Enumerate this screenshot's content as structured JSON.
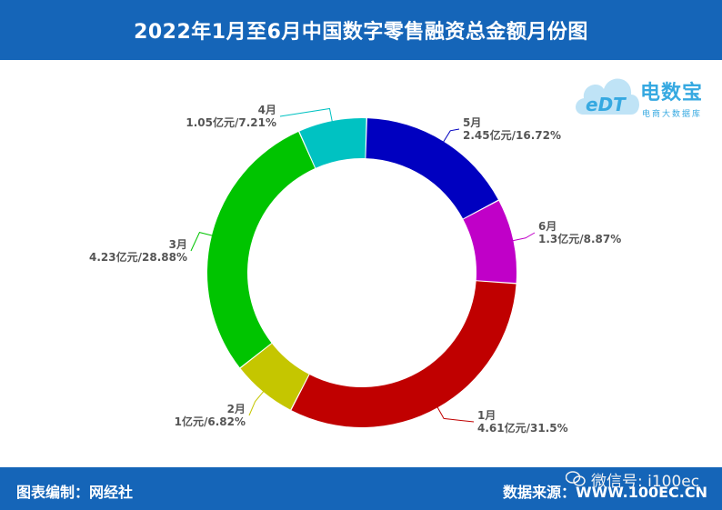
{
  "header": {
    "title": "2022年1月至6月中国数字零售融资总金额月份图"
  },
  "footer": {
    "credit": "图表编制：网经社",
    "source": "数据来源：WWW.100EC.CN",
    "wechat": "微信号: i100ec"
  },
  "logo": {
    "brand": "电数宝",
    "sub": "电商大数据库",
    "mark": "eDT"
  },
  "colors": {
    "bar": "#1565b8"
  },
  "chart_data": {
    "type": "pie",
    "subtype": "donut",
    "unit": "亿元",
    "slices": [
      {
        "label": "1月",
        "value": 4.61,
        "percent": 31.5,
        "text": "4.61亿元/31.5%",
        "color": "#c00000"
      },
      {
        "label": "2月",
        "value": 1,
        "percent": 6.82,
        "text": "1亿元/6.82%",
        "color": "#c5c600"
      },
      {
        "label": "3月",
        "value": 4.23,
        "percent": 28.88,
        "text": "4.23亿元/28.88%",
        "color": "#00c400"
      },
      {
        "label": "4月",
        "value": 1.05,
        "percent": 7.21,
        "text": "1.05亿元/7.21%",
        "color": "#00c2c2"
      },
      {
        "label": "5月",
        "value": 2.45,
        "percent": 16.72,
        "text": "2.45亿元/16.72%",
        "color": "#0000c0"
      },
      {
        "label": "6月",
        "value": 1.3,
        "percent": 8.87,
        "text": "1.3亿元/8.87%",
        "color": "#c000c8"
      }
    ]
  }
}
